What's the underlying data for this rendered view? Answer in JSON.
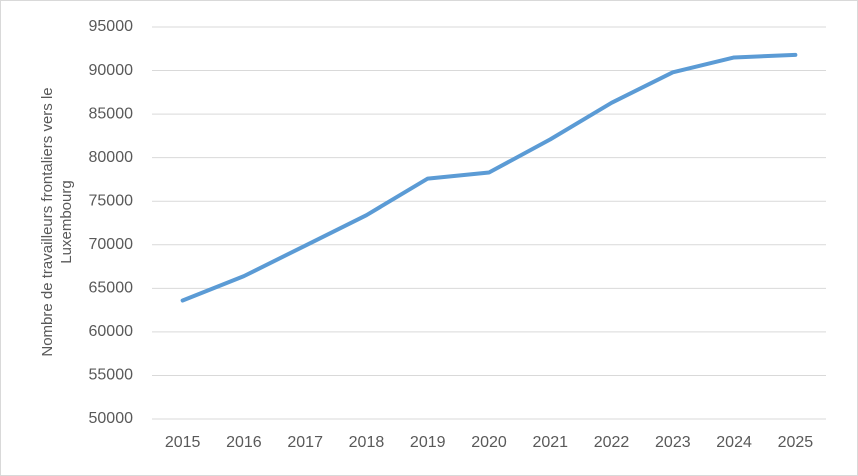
{
  "chart_data": {
    "type": "line",
    "y_label": "Nombre de travailleurs frontaliers vers le Luxembourg",
    "categories": [
      "2015",
      "2016",
      "2017",
      "2018",
      "2019",
      "2020",
      "2021",
      "2022",
      "2023",
      "2024",
      "2025"
    ],
    "series": [
      {
        "color": "#5b9bd5",
        "values": [
          63600,
          66400,
          69900,
          73400,
          77600,
          78300,
          82100,
          86300,
          89800,
          91500,
          91800
        ]
      }
    ],
    "ylim": [
      50000,
      95000
    ],
    "yticks": [
      50000,
      55000,
      60000,
      65000,
      70000,
      75000,
      80000,
      85000,
      90000,
      95000
    ],
    "grid": true
  }
}
